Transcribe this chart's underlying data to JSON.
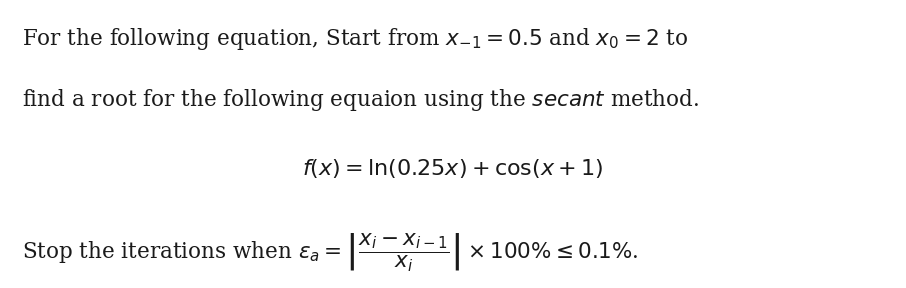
{
  "background_color": "#ffffff",
  "figsize": [
    9.06,
    2.88
  ],
  "dpi": 100,
  "line1": "For the following equation, Start from $x_{-1} = 0.5$ and $x_0 = 2$ to",
  "line2": "find a root for the following equaion using the \\textit{secant} method.",
  "line3": "$f(x) = \\ln(0.25x) + \\cos(x + 1)$",
  "line4": "Stop the iterations when $\\varepsilon_a = \\left|\\dfrac{x_i - x_{i-1}}{x_i}\\right| \\times 100\\% \\leq 0.1\\%$.",
  "fontsize_body": 15.5,
  "fontsize_eq": 16,
  "text_color": "#1a1a1a"
}
